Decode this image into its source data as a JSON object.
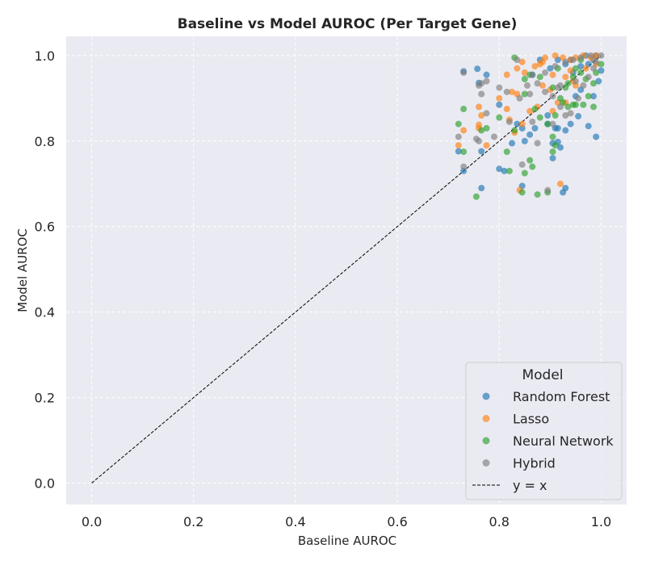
{
  "chart_data": {
    "type": "scatter",
    "title": "Baseline vs Model AUROC (Per Target Gene)",
    "xlabel": "Baseline AUROC",
    "ylabel": "Model AUROC",
    "xlim": [
      -0.05,
      1.05
    ],
    "ylim": [
      -0.05,
      1.045
    ],
    "xticks": [
      0.0,
      0.2,
      0.4,
      0.6,
      0.8,
      1.0
    ],
    "yticks": [
      0.0,
      0.2,
      0.4,
      0.6,
      0.8,
      1.0
    ],
    "xtick_labels": [
      "0.0",
      "0.2",
      "0.4",
      "0.6",
      "0.8",
      "1.0"
    ],
    "ytick_labels": [
      "0.0",
      "0.2",
      "0.4",
      "0.6",
      "0.8",
      "1.0"
    ],
    "grid": true,
    "background": "#eaeaf2",
    "legend": {
      "title": "Model",
      "placement": "lower-right",
      "reference_label": "y = x"
    },
    "reference_line": {
      "label": "y = x",
      "x": [
        0.0,
        1.0
      ],
      "y": [
        0.0,
        1.0
      ],
      "style": "dashed",
      "color": "#000000"
    },
    "series": [
      {
        "name": "Random Forest",
        "color": "#1f77b4",
        "points": [
          [
            0.73,
            0.963
          ],
          [
            0.757,
            0.969
          ],
          [
            0.775,
            0.955
          ],
          [
            0.76,
            0.936
          ],
          [
            0.72,
            0.776
          ],
          [
            0.765,
            0.776
          ],
          [
            0.73,
            0.73
          ],
          [
            0.765,
            0.69
          ],
          [
            0.8,
            0.735
          ],
          [
            0.81,
            0.73
          ],
          [
            0.845,
            0.695
          ],
          [
            0.925,
            0.68
          ],
          [
            0.93,
            0.69
          ],
          [
            0.8,
            0.885
          ],
          [
            0.835,
            0.84
          ],
          [
            0.845,
            0.83
          ],
          [
            0.86,
            0.815
          ],
          [
            0.825,
            0.795
          ],
          [
            0.85,
            0.8
          ],
          [
            0.87,
            0.83
          ],
          [
            0.905,
            0.76
          ],
          [
            0.905,
            0.795
          ],
          [
            0.915,
            0.798
          ],
          [
            0.92,
            0.785
          ],
          [
            0.895,
            0.84
          ],
          [
            0.915,
            0.83
          ],
          [
            0.93,
            0.825
          ],
          [
            0.94,
            0.84
          ],
          [
            0.955,
            0.858
          ],
          [
            0.975,
            0.835
          ],
          [
            0.99,
            0.81
          ],
          [
            0.985,
            0.905
          ],
          [
            0.995,
            0.94
          ],
          [
            1.0,
            0.965
          ],
          [
            0.96,
            0.92
          ],
          [
            0.95,
            0.905
          ],
          [
            0.975,
            0.98
          ],
          [
            0.985,
            0.99
          ],
          [
            0.93,
            0.98
          ],
          [
            0.945,
            0.96
          ],
          [
            0.96,
            0.975
          ],
          [
            0.99,
            1.0
          ],
          [
            0.97,
            1.0
          ],
          [
            0.915,
            0.99
          ],
          [
            0.88,
            0.99
          ],
          [
            0.865,
            0.955
          ],
          [
            0.9,
            0.97
          ],
          [
            0.94,
            0.99
          ],
          [
            0.895,
            0.86
          ],
          [
            0.91,
            0.83
          ]
        ]
      },
      {
        "name": "Lasso",
        "color": "#ff7f0e",
        "points": [
          [
            0.73,
            0.825
          ],
          [
            0.76,
            0.838
          ],
          [
            0.72,
            0.79
          ],
          [
            0.775,
            0.79
          ],
          [
            0.76,
            0.83
          ],
          [
            0.8,
            0.9
          ],
          [
            0.815,
            0.875
          ],
          [
            0.825,
            0.915
          ],
          [
            0.835,
            0.91
          ],
          [
            0.835,
            0.97
          ],
          [
            0.845,
            0.985
          ],
          [
            0.815,
            0.955
          ],
          [
            0.85,
            0.96
          ],
          [
            0.87,
            0.975
          ],
          [
            0.885,
            0.985
          ],
          [
            0.89,
            0.995
          ],
          [
            0.91,
            1.0
          ],
          [
            0.925,
            0.995
          ],
          [
            0.94,
            0.99
          ],
          [
            0.95,
            0.995
          ],
          [
            0.965,
            1.0
          ],
          [
            0.98,
            0.995
          ],
          [
            0.99,
            1.0
          ],
          [
            0.99,
            0.98
          ],
          [
            0.97,
            0.97
          ],
          [
            0.94,
            0.965
          ],
          [
            0.93,
            0.95
          ],
          [
            0.9,
            0.92
          ],
          [
            0.885,
            0.93
          ],
          [
            0.875,
            0.88
          ],
          [
            0.86,
            0.87
          ],
          [
            0.845,
            0.84
          ],
          [
            0.83,
            0.82
          ],
          [
            0.82,
            0.85
          ],
          [
            0.905,
            0.87
          ],
          [
            0.915,
            0.89
          ],
          [
            0.93,
            0.89
          ],
          [
            0.95,
            0.93
          ],
          [
            0.92,
            0.7
          ],
          [
            0.84,
            0.685
          ],
          [
            0.765,
            0.86
          ],
          [
            0.76,
            0.88
          ],
          [
            0.88,
            0.98
          ],
          [
            0.905,
            0.955
          ],
          [
            0.945,
            0.94
          ]
        ]
      },
      {
        "name": "Neural Network",
        "color": "#2ca02c",
        "points": [
          [
            0.72,
            0.84
          ],
          [
            0.73,
            0.875
          ],
          [
            0.73,
            0.775
          ],
          [
            0.755,
            0.67
          ],
          [
            0.765,
            0.825
          ],
          [
            0.775,
            0.83
          ],
          [
            0.8,
            0.855
          ],
          [
            0.815,
            0.775
          ],
          [
            0.82,
            0.73
          ],
          [
            0.83,
            0.825
          ],
          [
            0.845,
            0.68
          ],
          [
            0.85,
            0.725
          ],
          [
            0.86,
            0.755
          ],
          [
            0.865,
            0.74
          ],
          [
            0.875,
            0.675
          ],
          [
            0.895,
            0.68
          ],
          [
            0.905,
            0.775
          ],
          [
            0.91,
            0.79
          ],
          [
            0.905,
            0.81
          ],
          [
            0.88,
            0.855
          ],
          [
            0.895,
            0.84
          ],
          [
            0.91,
            0.86
          ],
          [
            0.925,
            0.89
          ],
          [
            0.935,
            0.88
          ],
          [
            0.945,
            0.885
          ],
          [
            0.95,
            0.885
          ],
          [
            0.965,
            0.885
          ],
          [
            0.975,
            0.905
          ],
          [
            0.985,
            0.88
          ],
          [
            0.985,
            0.935
          ],
          [
            0.97,
            0.945
          ],
          [
            0.96,
            0.96
          ],
          [
            0.945,
            0.95
          ],
          [
            0.93,
            0.925
          ],
          [
            0.92,
            0.9
          ],
          [
            0.905,
            0.925
          ],
          [
            0.88,
            0.95
          ],
          [
            0.86,
            0.955
          ],
          [
            0.85,
            0.945
          ],
          [
            0.83,
            0.995
          ],
          [
            0.85,
            0.91
          ],
          [
            0.87,
            0.875
          ],
          [
            0.99,
            0.96
          ],
          [
            1.0,
            0.98
          ],
          [
            0.95,
            0.97
          ],
          [
            0.915,
            0.97
          ],
          [
            0.935,
            0.935
          ],
          [
            0.96,
            0.99
          ]
        ]
      },
      {
        "name": "Hybrid",
        "color": "#7f7f7f",
        "points": [
          [
            0.73,
            0.96
          ],
          [
            0.73,
            0.74
          ],
          [
            0.755,
            0.805
          ],
          [
            0.76,
            0.93
          ],
          [
            0.765,
            0.935
          ],
          [
            0.765,
            0.91
          ],
          [
            0.775,
            0.94
          ],
          [
            0.8,
            0.925
          ],
          [
            0.815,
            0.915
          ],
          [
            0.84,
            0.9
          ],
          [
            0.855,
            0.93
          ],
          [
            0.86,
            0.91
          ],
          [
            0.875,
            0.935
          ],
          [
            0.89,
            0.915
          ],
          [
            0.905,
            0.905
          ],
          [
            0.915,
            0.925
          ],
          [
            0.92,
            0.88
          ],
          [
            0.93,
            0.86
          ],
          [
            0.94,
            0.865
          ],
          [
            0.955,
            0.9
          ],
          [
            0.965,
            0.93
          ],
          [
            0.975,
            0.95
          ],
          [
            0.985,
            0.97
          ],
          [
            0.99,
            0.985
          ],
          [
            1.0,
            1.0
          ],
          [
            0.98,
            1.0
          ],
          [
            0.96,
            0.995
          ],
          [
            0.945,
            0.99
          ],
          [
            0.93,
            0.985
          ],
          [
            0.91,
            0.975
          ],
          [
            0.89,
            0.96
          ],
          [
            0.875,
            0.795
          ],
          [
            0.865,
            0.845
          ],
          [
            0.845,
            0.745
          ],
          [
            0.895,
            0.685
          ],
          [
            0.82,
            0.845
          ],
          [
            0.79,
            0.81
          ],
          [
            0.76,
            0.8
          ],
          [
            0.72,
            0.81
          ],
          [
            0.775,
            0.865
          ],
          [
            0.835,
            0.99
          ],
          [
            0.865,
            0.955
          ],
          [
            0.92,
            0.93
          ],
          [
            0.905,
            0.84
          ],
          [
            0.95,
            0.94
          ]
        ]
      }
    ]
  }
}
